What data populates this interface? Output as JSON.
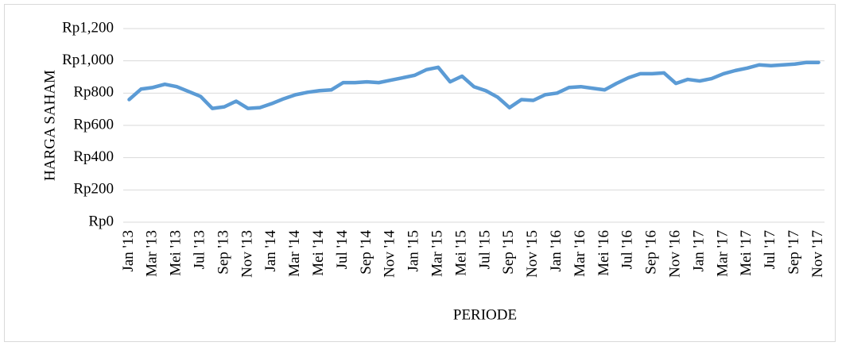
{
  "chart_data": {
    "type": "line",
    "x_label": "PERIODE",
    "y_label": "HARGA SAHAM",
    "categories": [
      "Jan '13",
      null,
      "Mar '13",
      null,
      "Mei '13",
      null,
      "Jul '13",
      null,
      "Sep '13",
      null,
      "Nov '13",
      null,
      "Jan '14",
      null,
      "Mar '14",
      null,
      "Mei '14",
      null,
      "Jul '14",
      null,
      "Sep '14",
      null,
      "Nov '14",
      null,
      "Jan '15",
      null,
      "Mar '15",
      null,
      "Mei '15",
      null,
      "Jul '15",
      null,
      "Sep '15",
      null,
      "Nov '15",
      null,
      "Jan '16",
      null,
      "Mar '16",
      null,
      "Mei '16",
      null,
      "Jul '16",
      null,
      "Sep '16",
      null,
      "Nov '16",
      null,
      "Jan '17",
      null,
      "Mar '17",
      null,
      "Mei '17",
      null,
      "Jul '17",
      null,
      "Sep '17",
      null,
      "Nov '17"
    ],
    "values": [
      760,
      825,
      835,
      855,
      840,
      810,
      780,
      705,
      715,
      750,
      705,
      710,
      735,
      765,
      790,
      805,
      815,
      820,
      865,
      865,
      870,
      865,
      880,
      895,
      910,
      945,
      960,
      870,
      905,
      840,
      815,
      775,
      710,
      760,
      755,
      790,
      800,
      835,
      840,
      830,
      820,
      860,
      895,
      920,
      920,
      925,
      860,
      885,
      875,
      890,
      920,
      940,
      955,
      975,
      970,
      975,
      980,
      990,
      990
    ],
    "color": "#5b9bd5",
    "ylim": [
      0,
      1200
    ],
    "yticks": [
      {
        "value": 0,
        "label": "Rp0"
      },
      {
        "value": 200,
        "label": "Rp200"
      },
      {
        "value": 400,
        "label": "Rp400"
      },
      {
        "value": 600,
        "label": "Rp600"
      },
      {
        "value": 800,
        "label": "Rp800"
      },
      {
        "value": 1000,
        "label": "Rp1,000"
      },
      {
        "value": 1200,
        "label": "Rp1,200"
      }
    ],
    "grid": true
  }
}
